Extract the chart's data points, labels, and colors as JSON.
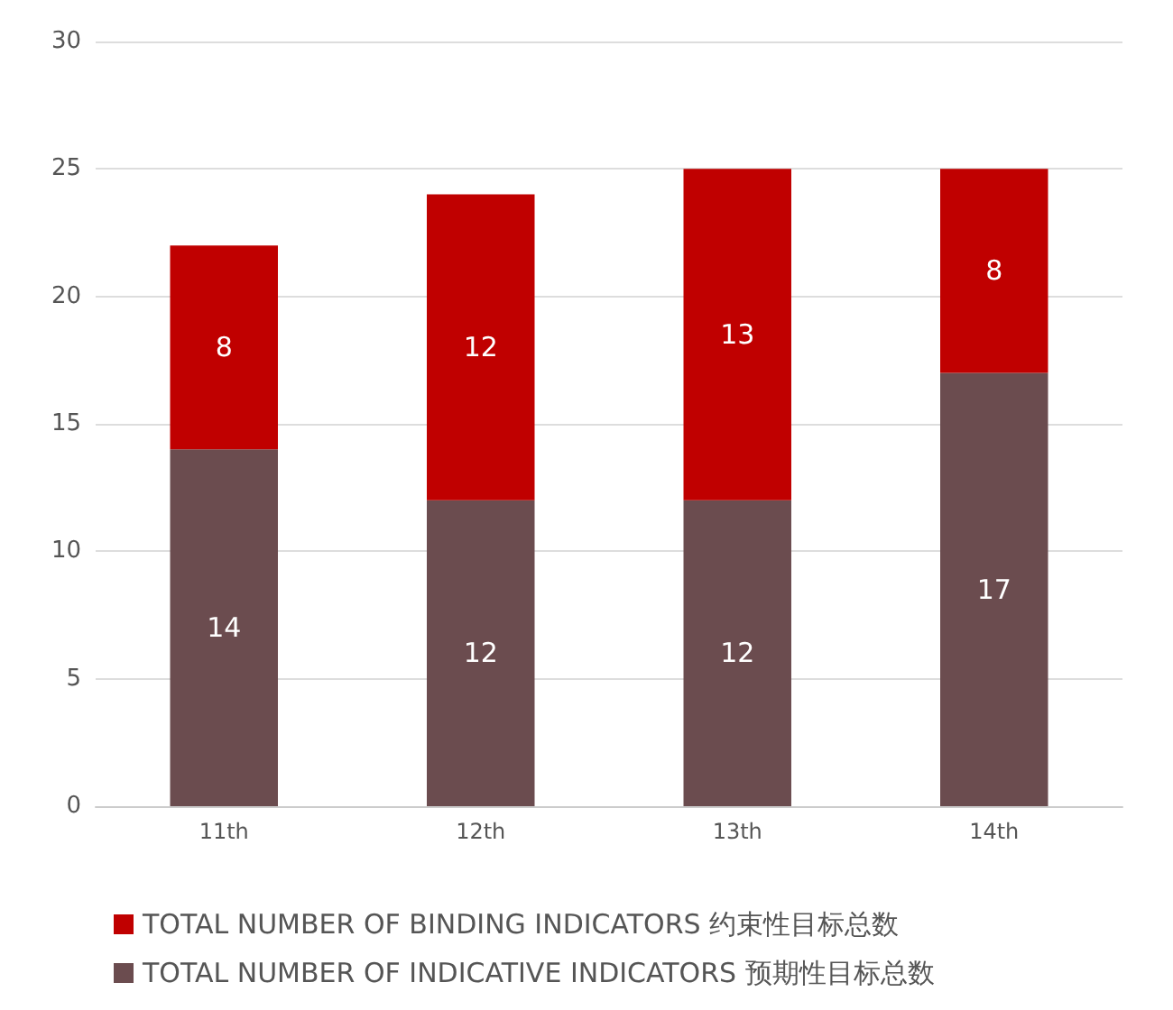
{
  "chart_data": {
    "type": "bar",
    "stacked": true,
    "categories": [
      "11th",
      "12th",
      "13th",
      "14th"
    ],
    "series": [
      {
        "name": "TOTAL NUMBER OF INDICATIVE INDICATORS 预期性目标总数",
        "color": "#6b4c4f",
        "values": [
          14,
          12,
          12,
          17
        ]
      },
      {
        "name": "TOTAL NUMBER OF BINDING INDICATORS 约束性目标总数",
        "color": "#c00000",
        "values": [
          8,
          12,
          13,
          8
        ]
      }
    ],
    "ylim": [
      0,
      30
    ],
    "yticks": [
      0,
      5,
      10,
      15,
      20,
      25,
      30
    ],
    "grid": "y",
    "legend": "bottom",
    "data_labels": true
  }
}
